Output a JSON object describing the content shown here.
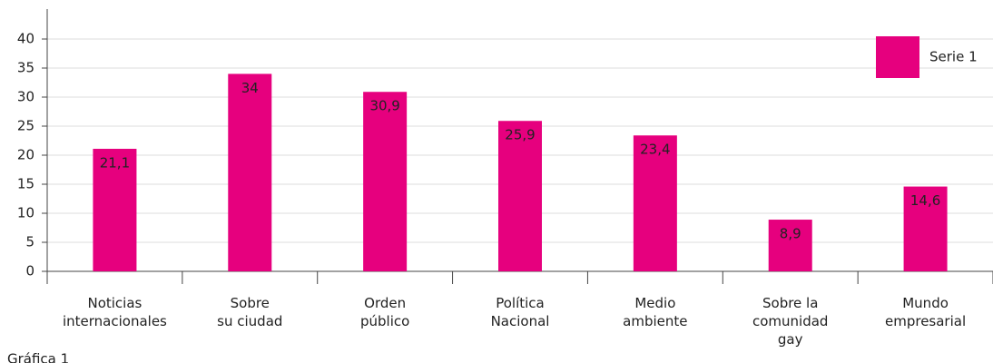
{
  "chart_data": {
    "type": "bar",
    "categories": [
      "Noticias\ninternacionales",
      "Sobre\nsu ciudad",
      "Orden\npúblico",
      "Política\nNacional",
      "Medio\nambiente",
      "Sobre la\ncomunidad\ngay",
      "Mundo\nempresarial"
    ],
    "series": [
      {
        "name": "Serie 1",
        "color": "#e6007e",
        "values": [
          21.1,
          34,
          30.9,
          25.9,
          23.4,
          8.9,
          14.6
        ],
        "value_labels": [
          "21,1",
          "34",
          "30,9",
          "25,9",
          "23,4",
          "8,9",
          "14,6"
        ]
      }
    ],
    "ylim": [
      0,
      40
    ],
    "yticks": [
      0,
      5,
      10,
      15,
      20,
      25,
      30,
      35,
      40
    ],
    "grid": true,
    "legend": "top-right",
    "caption": "Gráfica 1"
  }
}
